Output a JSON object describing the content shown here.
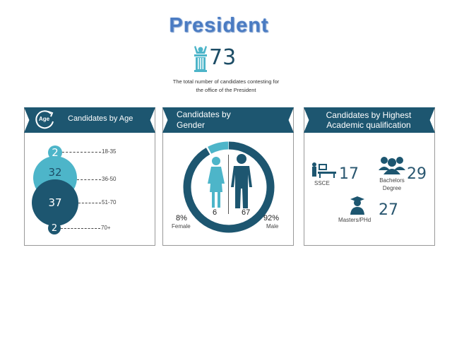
{
  "title": "President",
  "total": "73",
  "description": "The total number of candidates contesting for the office of the President",
  "colors": {
    "dark": "#1d5670",
    "light": "#4db5c9",
    "title": "#4a7bc2"
  },
  "age": {
    "title": "Candidates by Age",
    "icon_label": "Age",
    "groups": [
      {
        "range": "18-35",
        "count": "2"
      },
      {
        "range": "36-50",
        "count": "32"
      },
      {
        "range": "51-70",
        "count": "37"
      },
      {
        "range": "70+",
        "count": "2"
      }
    ]
  },
  "gender": {
    "title": "Candidates by Gender",
    "female": {
      "count": "6",
      "percent": "8%",
      "label": "Female",
      "share": 0.08
    },
    "male": {
      "count": "67",
      "percent": "92%",
      "label": "Male",
      "share": 0.92
    }
  },
  "qualification": {
    "title": "Candidates by Highest Academic qualification",
    "items": [
      {
        "label": "SSCE",
        "count": "17"
      },
      {
        "label": "Bachelors Degree",
        "count": "29"
      },
      {
        "label": "Masters/PHd",
        "count": "27"
      }
    ]
  }
}
